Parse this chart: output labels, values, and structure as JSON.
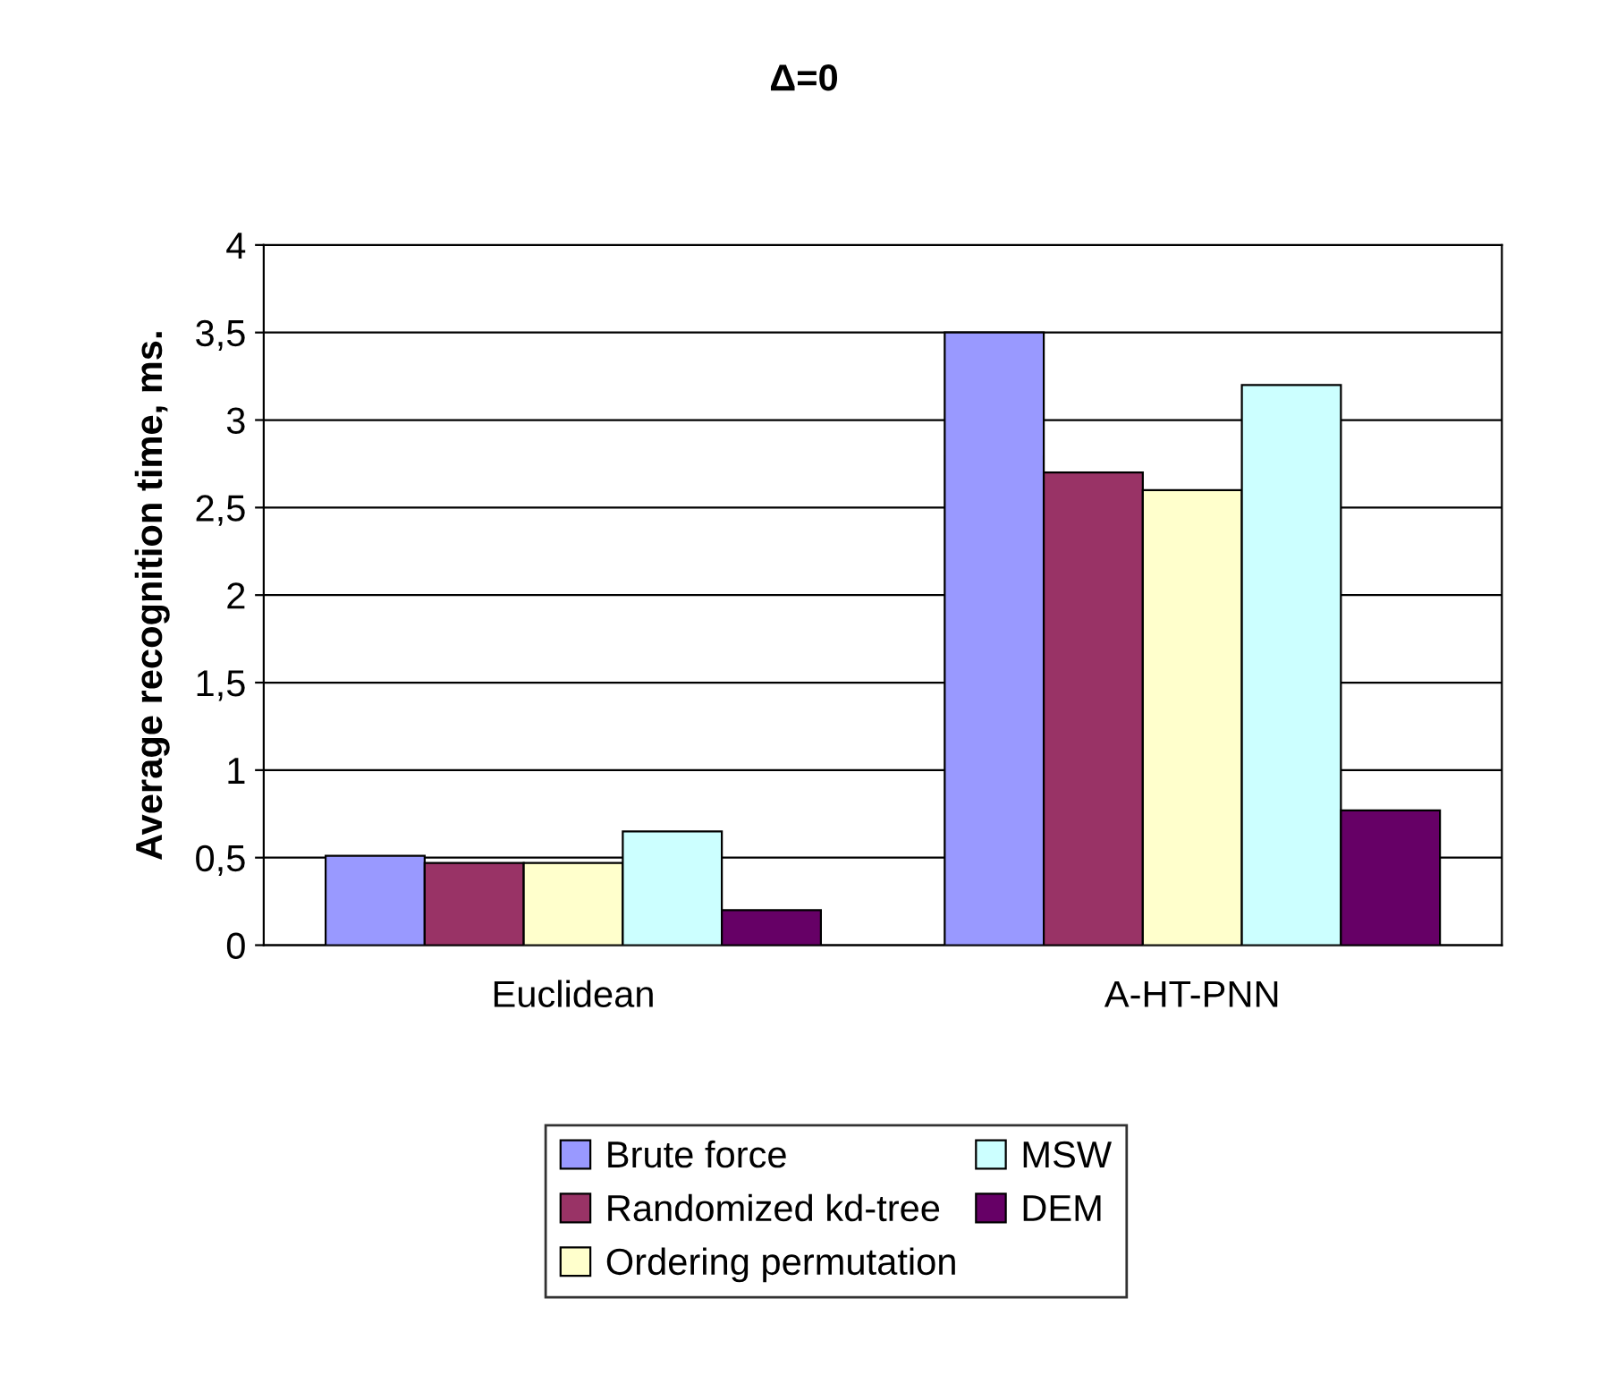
{
  "chart_data": {
    "type": "bar",
    "title": "Δ=0",
    "ylabel": "Average recognition time, ms.",
    "categories": [
      "Euclidean",
      "A-HT-PNN"
    ],
    "series": [
      {
        "name": "Brute force",
        "color": "#9999ff",
        "values": [
          0.51,
          3.5
        ]
      },
      {
        "name": "Randomized kd-tree",
        "color": "#993366",
        "values": [
          0.47,
          2.7
        ]
      },
      {
        "name": "Ordering permutation",
        "color": "#ffffcc",
        "values": [
          0.47,
          2.6
        ]
      },
      {
        "name": "MSW",
        "color": "#ccffff",
        "values": [
          0.65,
          3.2
        ]
      },
      {
        "name": "DEM",
        "color": "#660066",
        "values": [
          0.2,
          0.77
        ]
      }
    ],
    "ylim": [
      0,
      4
    ],
    "yticks": [
      0,
      {
        "value": 0.5,
        "label": "0,5"
      },
      1,
      {
        "value": 1.5,
        "label": "1,5"
      },
      2,
      {
        "value": 2.5,
        "label": "2,5"
      },
      3,
      {
        "value": 3.5,
        "label": "3,5"
      },
      4
    ],
    "grid": "y",
    "legend": "bottom"
  }
}
